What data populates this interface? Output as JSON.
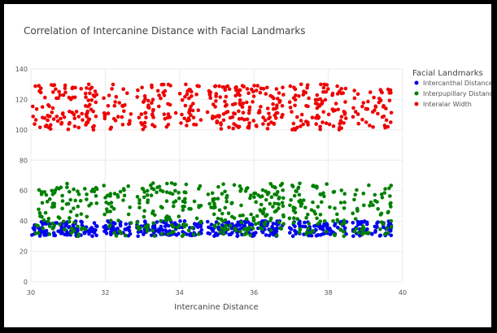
{
  "chart_data": {
    "type": "scatter",
    "title": "Correlation of Intercanine Distance with Facial Landmarks",
    "xlabel": "Intercanine Distance",
    "ylabel": "",
    "xlim": [
      30,
      40
    ],
    "ylim": [
      0,
      140
    ],
    "x_ticks": [
      "30",
      "32",
      "34",
      "36",
      "38",
      "40"
    ],
    "y_ticks": [
      "0",
      "20",
      "40",
      "60",
      "80",
      "100",
      "120",
      "140"
    ],
    "grid": true,
    "legend": {
      "title": "Facial Landmarks",
      "placement": "right"
    },
    "series": [
      {
        "name": "Intercanthal Distance",
        "color": "#0000ee",
        "n": 500,
        "x_range": [
          30,
          39.7
        ],
        "y_range": [
          30,
          40
        ],
        "gaps": [
          [
            31.8,
            31.95
          ],
          [
            32.7,
            32.85
          ],
          [
            34.6,
            34.75
          ],
          [
            36.8,
            36.95
          ],
          [
            38.5,
            38.65
          ]
        ]
      },
      {
        "name": "Interpupillary Distance",
        "color": "#008000",
        "n": 500,
        "x_range": [
          30,
          39.7
        ],
        "y_range": [
          30,
          65
        ],
        "gaps": [
          [
            31.8,
            31.95
          ],
          [
            32.7,
            32.85
          ],
          [
            34.6,
            34.75
          ],
          [
            36.8,
            36.95
          ],
          [
            38.5,
            38.65
          ]
        ]
      },
      {
        "name": "Interalar Width",
        "color": "#ee0000",
        "n": 500,
        "x_range": [
          30,
          39.7
        ],
        "y_range": [
          100,
          130
        ],
        "gaps": [
          [
            31.8,
            31.95
          ],
          [
            32.7,
            32.85
          ],
          [
            34.6,
            34.75
          ],
          [
            36.8,
            36.95
          ],
          [
            38.5,
            38.65
          ]
        ]
      }
    ]
  }
}
